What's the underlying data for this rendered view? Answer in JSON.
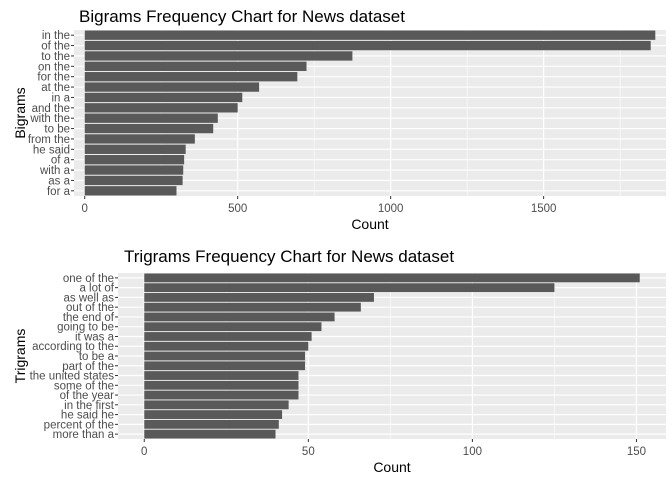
{
  "colors": {
    "panel": "#ebebeb",
    "grid_major": "#ffffff",
    "bar": "#595959",
    "tick_text": "#4d4d4d",
    "text": "#000000"
  },
  "chart_data": [
    {
      "type": "bar",
      "orientation": "horizontal",
      "title": "Bigrams Frequency Chart for News dataset",
      "xlabel": "Count",
      "ylabel": "Bigrams",
      "categories": [
        "in the",
        "of the",
        "to the",
        "on the",
        "for the",
        "at the",
        "in a",
        "and the",
        "with the",
        "to be",
        "from the",
        "he said",
        "of a",
        "with a",
        "as a",
        "for a"
      ],
      "values": [
        1865,
        1850,
        875,
        725,
        695,
        570,
        515,
        500,
        435,
        420,
        360,
        330,
        325,
        322,
        320,
        300
      ],
      "xlim": [
        -35,
        1900
      ],
      "xticks": [
        0,
        500,
        1000,
        1500
      ],
      "grid": true
    },
    {
      "type": "bar",
      "orientation": "horizontal",
      "title": "Trigrams Frequency Chart for News dataset",
      "xlabel": "Count",
      "ylabel": "Trigrams",
      "categories": [
        "one of the",
        "a lot of",
        "as well as",
        "out of the",
        "the end of",
        "going to be",
        "it was a",
        "according to the",
        "to be a",
        "part of the",
        "the united states",
        "some of the",
        "of the year",
        "in the first",
        "he said he",
        "percent of the",
        "more than a"
      ],
      "values": [
        151,
        125,
        70,
        66,
        58,
        54,
        51,
        50,
        49,
        49,
        47,
        47,
        47,
        44,
        42,
        41,
        40
      ],
      "xlim": [
        -8,
        159
      ],
      "xticks": [
        0,
        50,
        100,
        150
      ],
      "grid": true
    }
  ]
}
